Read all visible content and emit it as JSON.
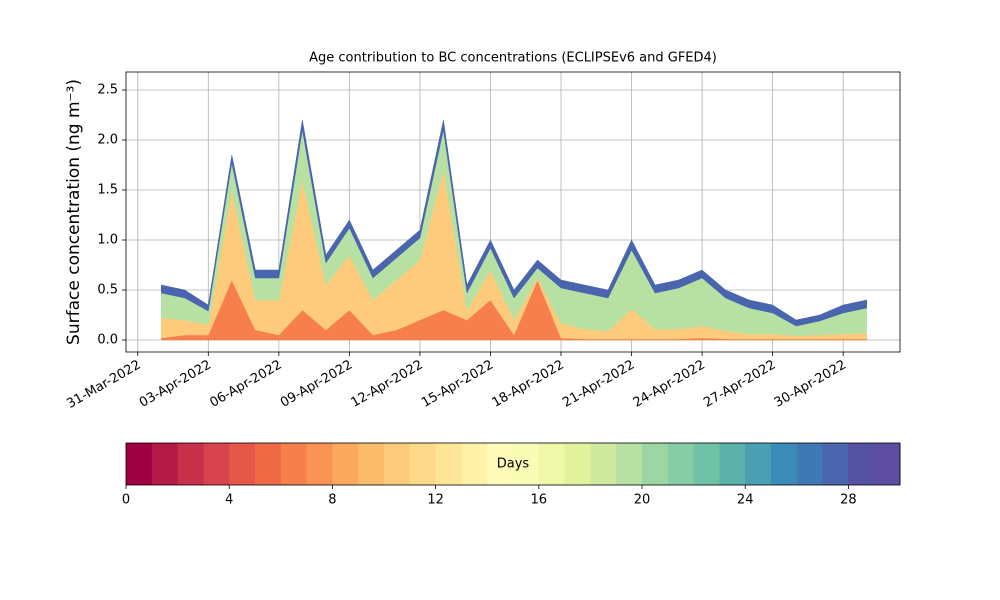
{
  "chart_data": {
    "type": "stackedarea",
    "title": "Age contribution to BC concentrations (ECLIPSEv6 and GFED4)",
    "y_label": "Surface concentration (ng m⁻³)",
    "x": [
      "2022-04-01",
      "2022-04-02",
      "2022-04-03",
      "2022-04-04",
      "2022-04-05",
      "2022-04-06",
      "2022-04-07",
      "2022-04-08",
      "2022-04-09",
      "2022-04-10",
      "2022-04-11",
      "2022-04-12",
      "2022-04-13",
      "2022-04-14",
      "2022-04-15",
      "2022-04-16",
      "2022-04-17",
      "2022-04-18",
      "2022-04-19",
      "2022-04-20",
      "2022-04-21",
      "2022-04-22",
      "2022-04-23",
      "2022-04-24",
      "2022-04-25",
      "2022-04-26",
      "2022-04-27",
      "2022-04-28",
      "2022-04-29",
      "2022-04-30",
      "2022-05-01"
    ],
    "series": [
      {
        "color": "#f67f4b",
        "values": [
          0.02,
          0.05,
          0.05,
          0.6,
          0.1,
          0.05,
          0.3,
          0.1,
          0.3,
          0.05,
          0.1,
          0.2,
          0.3,
          0.2,
          0.4,
          0.05,
          0.6,
          0.02,
          0.01,
          0.01,
          0.01,
          0.01,
          0.01,
          0.02,
          0.01,
          0.01,
          0.01,
          0.01,
          0.01,
          0.01,
          0.01
        ]
      },
      {
        "color": "#fdcb7b",
        "values": [
          0.2,
          0.15,
          0.1,
          0.9,
          0.3,
          0.35,
          1.3,
          0.45,
          0.55,
          0.35,
          0.5,
          0.6,
          1.4,
          0.1,
          0.3,
          0.15,
          0.02,
          0.15,
          0.1,
          0.08,
          0.3,
          0.1,
          0.1,
          0.12,
          0.08,
          0.05,
          0.05,
          0.03,
          0.04,
          0.05,
          0.06
        ]
      },
      {
        "color": "#b6e1a3",
        "values": [
          0.25,
          0.22,
          0.14,
          0.27,
          0.22,
          0.22,
          0.5,
          0.22,
          0.27,
          0.22,
          0.22,
          0.22,
          0.4,
          0.17,
          0.22,
          0.22,
          0.1,
          0.35,
          0.36,
          0.33,
          0.59,
          0.36,
          0.41,
          0.48,
          0.33,
          0.26,
          0.21,
          0.1,
          0.14,
          0.21,
          0.25
        ]
      },
      {
        "color": "#4965ae",
        "values": [
          0.08,
          0.08,
          0.06,
          0.08,
          0.08,
          0.08,
          0.1,
          0.08,
          0.08,
          0.08,
          0.08,
          0.08,
          0.1,
          0.08,
          0.08,
          0.08,
          0.08,
          0.08,
          0.08,
          0.08,
          0.1,
          0.08,
          0.08,
          0.08,
          0.08,
          0.08,
          0.08,
          0.06,
          0.06,
          0.08,
          0.08
        ]
      }
    ],
    "xlim": [
      "2022-03-30T12:00",
      "2022-05-02T10:00"
    ],
    "xticks": [
      {
        "value": "2022-03-31",
        "label": "31-Mar-2022"
      },
      {
        "value": "2022-04-03",
        "label": "03-Apr-2022"
      },
      {
        "value": "2022-04-06",
        "label": "06-Apr-2022"
      },
      {
        "value": "2022-04-09",
        "label": "09-Apr-2022"
      },
      {
        "value": "2022-04-12",
        "label": "12-Apr-2022"
      },
      {
        "value": "2022-04-15",
        "label": "15-Apr-2022"
      },
      {
        "value": "2022-04-18",
        "label": "18-Apr-2022"
      },
      {
        "value": "2022-04-21",
        "label": "21-Apr-2022"
      },
      {
        "value": "2022-04-24",
        "label": "24-Apr-2022"
      },
      {
        "value": "2022-04-27",
        "label": "27-Apr-2022"
      },
      {
        "value": "2022-04-30",
        "label": "30-Apr-2022"
      }
    ],
    "ylim": [
      -0.12,
      2.68
    ],
    "yticks": [
      {
        "value": 0,
        "label": "0.0"
      },
      0.5,
      {
        "value": 1,
        "label": "1.0"
      },
      1.5,
      {
        "value": 2,
        "label": "2.0"
      },
      2.5
    ],
    "grid": true,
    "colorbar": {
      "label": "Days",
      "lim": [
        0,
        30
      ],
      "ticks": [
        0,
        4,
        8,
        12,
        16,
        20,
        24,
        28
      ],
      "colors": [
        "#9e0142",
        "#b41947",
        "#c9304b",
        "#d8434e",
        "#e55749",
        "#ee6a44",
        "#f67f4b",
        "#f99455",
        "#fca95f",
        "#fdbb6c",
        "#fdcb7b",
        "#fed98a",
        "#fee699",
        "#fff1a8",
        "#fffbb8",
        "#f9fcb4",
        "#eef8a8",
        "#e2f39b",
        "#cdea9f",
        "#b6e1a3",
        "#9dd6a4",
        "#86cca5",
        "#6fc2a5",
        "#5bb1a9",
        "#4a9fb1",
        "#3b8bb9",
        "#3f78b3",
        "#4965ae",
        "#5652a4",
        "#5e4fa2"
      ]
    }
  }
}
